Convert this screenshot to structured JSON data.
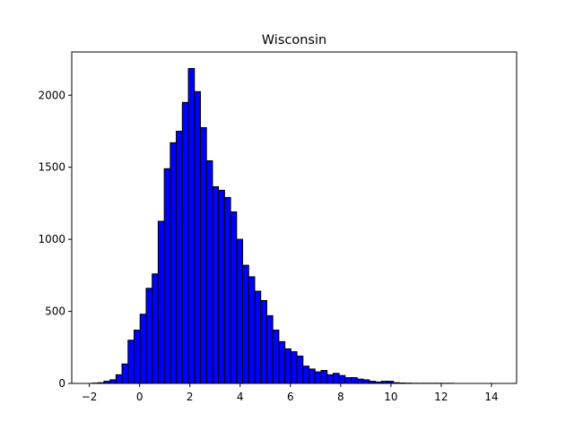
{
  "chart_data": {
    "type": "bar",
    "title": "Wisconsin",
    "xlabel": "",
    "ylabel": "",
    "xlim": [
      -2.7,
      15.0
    ],
    "ylim": [
      0,
      2300
    ],
    "x_ticks": [
      -2,
      0,
      2,
      4,
      6,
      8,
      10,
      12,
      14
    ],
    "y_ticks": [
      0,
      500,
      1000,
      1500,
      2000
    ],
    "bin_width": 0.24,
    "bin_start": -1.9,
    "values": [
      2,
      5,
      15,
      25,
      60,
      135,
      300,
      370,
      480,
      660,
      760,
      1125,
      1490,
      1670,
      1750,
      1950,
      2185,
      2025,
      1775,
      1545,
      1365,
      1340,
      1290,
      1190,
      1000,
      820,
      740,
      640,
      575,
      470,
      370,
      290,
      240,
      220,
      190,
      120,
      100,
      80,
      90,
      60,
      70,
      55,
      40,
      40,
      30,
      25,
      15,
      10,
      15,
      15,
      5,
      3,
      2,
      1,
      1,
      1,
      1,
      1,
      1,
      1,
      0,
      0,
      0,
      0,
      0,
      0,
      0,
      0
    ],
    "bar_color": "#0000ff",
    "edge_color": "#000000",
    "grid": false,
    "legend": "none"
  }
}
